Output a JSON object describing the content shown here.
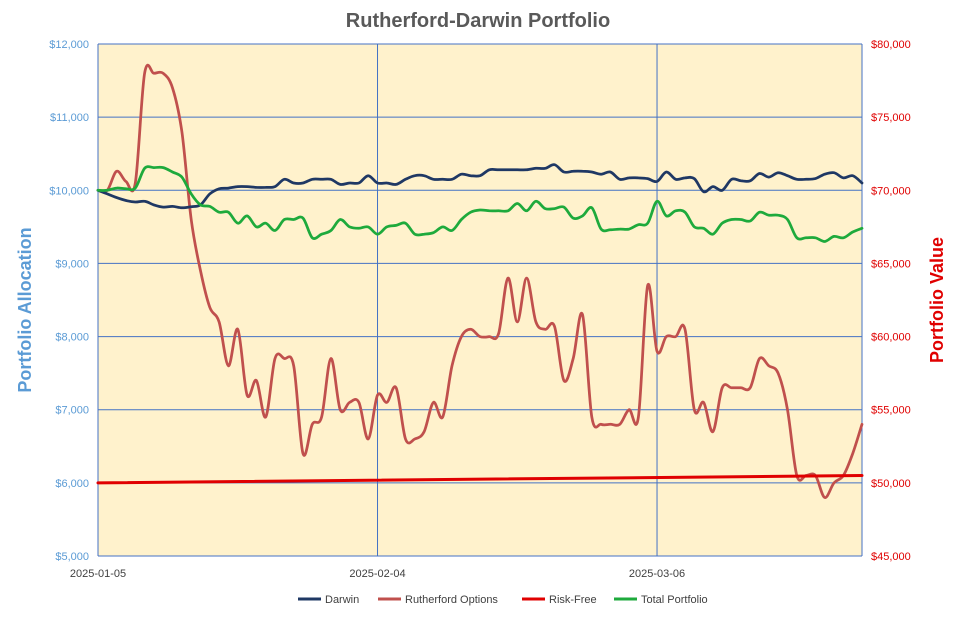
{
  "chart_data": {
    "type": "line",
    "title": "Rutherford-Darwin Portfolio",
    "y_left_label": "Portfolio Allocation",
    "y_right_label": "Portfolio Value",
    "x_tick_labels": [
      "2025-01-05",
      "2025-02-04",
      "2025-03-06"
    ],
    "x_range": [
      0,
      82
    ],
    "x_ticks": [
      0,
      30,
      60
    ],
    "y_left": {
      "min": 5000,
      "max": 12000,
      "ticks": [
        5000,
        6000,
        7000,
        8000,
        9000,
        10000,
        11000,
        12000
      ],
      "tick_labels": [
        "$5,000",
        "$6,000",
        "$7,000",
        "$8,000",
        "$9,000",
        "$10,000",
        "$11,000",
        "$12,000"
      ]
    },
    "y_right": {
      "min": 45000,
      "max": 80000,
      "tick_labels": [
        "$45,000",
        "$50,000",
        "$55,000",
        "$60,000",
        "$65,000",
        "$70,000",
        "$75,000",
        "$80,000"
      ]
    },
    "grid": true,
    "legend_position": "bottom",
    "plot_background": "#FFF2CC",
    "series": [
      {
        "name": "Darwin",
        "axis": "left",
        "color": "#1F3864",
        "points": [
          [
            0,
            10000
          ],
          [
            1,
            9950
          ],
          [
            2,
            9900
          ],
          [
            3,
            9860
          ],
          [
            4,
            9840
          ],
          [
            5,
            9850
          ],
          [
            6,
            9800
          ],
          [
            7,
            9770
          ],
          [
            8,
            9780
          ],
          [
            9,
            9760
          ],
          [
            10,
            9775
          ],
          [
            11,
            9800
          ],
          [
            12,
            9950
          ],
          [
            13,
            10020
          ],
          [
            14,
            10030
          ],
          [
            15,
            10050
          ],
          [
            16,
            10050
          ],
          [
            17,
            10040
          ],
          [
            18,
            10040
          ],
          [
            19,
            10050
          ],
          [
            20,
            10150
          ],
          [
            21,
            10100
          ],
          [
            22,
            10100
          ],
          [
            23,
            10150
          ],
          [
            24,
            10150
          ],
          [
            25,
            10150
          ],
          [
            26,
            10080
          ],
          [
            27,
            10100
          ],
          [
            28,
            10100
          ],
          [
            29,
            10200
          ],
          [
            30,
            10100
          ],
          [
            31,
            10100
          ],
          [
            32,
            10080
          ],
          [
            33,
            10150
          ],
          [
            34,
            10200
          ],
          [
            35,
            10200
          ],
          [
            36,
            10150
          ],
          [
            37,
            10150
          ],
          [
            38,
            10150
          ],
          [
            39,
            10220
          ],
          [
            40,
            10200
          ],
          [
            41,
            10200
          ],
          [
            42,
            10280
          ],
          [
            43,
            10280
          ],
          [
            44,
            10280
          ],
          [
            45,
            10280
          ],
          [
            46,
            10280
          ],
          [
            47,
            10300
          ],
          [
            48,
            10300
          ],
          [
            49,
            10350
          ],
          [
            50,
            10250
          ],
          [
            51,
            10260
          ],
          [
            52,
            10260
          ],
          [
            53,
            10250
          ],
          [
            54,
            10220
          ],
          [
            55,
            10250
          ],
          [
            56,
            10150
          ],
          [
            57,
            10170
          ],
          [
            58,
            10170
          ],
          [
            59,
            10160
          ],
          [
            60,
            10120
          ],
          [
            61,
            10250
          ],
          [
            62,
            10150
          ],
          [
            63,
            10170
          ],
          [
            64,
            10160
          ],
          [
            65,
            9980
          ],
          [
            66,
            10050
          ],
          [
            67,
            10000
          ],
          [
            68,
            10150
          ],
          [
            69,
            10130
          ],
          [
            70,
            10130
          ],
          [
            71,
            10230
          ],
          [
            72,
            10180
          ],
          [
            73,
            10240
          ],
          [
            74,
            10200
          ],
          [
            75,
            10150
          ],
          [
            76,
            10150
          ],
          [
            77,
            10160
          ],
          [
            78,
            10220
          ],
          [
            79,
            10240
          ],
          [
            80,
            10170
          ],
          [
            81,
            10200
          ],
          [
            82,
            10100
          ]
        ]
      },
      {
        "name": "Rutherford Options",
        "axis": "right",
        "color": "#C0504D",
        "points": [
          [
            0,
            70000
          ],
          [
            1,
            70000
          ],
          [
            2,
            71300
          ],
          [
            3,
            70600
          ],
          [
            4,
            70500
          ],
          [
            5,
            78000
          ],
          [
            6,
            78000
          ],
          [
            7,
            78000
          ],
          [
            8,
            77000
          ],
          [
            9,
            74000
          ],
          [
            10,
            68000
          ],
          [
            11,
            64500
          ],
          [
            12,
            62000
          ],
          [
            13,
            61000
          ],
          [
            14,
            58000
          ],
          [
            15,
            60500
          ],
          [
            16,
            56000
          ],
          [
            17,
            57000
          ],
          [
            18,
            54500
          ],
          [
            19,
            58500
          ],
          [
            20,
            58500
          ],
          [
            21,
            58000
          ],
          [
            22,
            52000
          ],
          [
            23,
            54000
          ],
          [
            24,
            54500
          ],
          [
            25,
            58500
          ],
          [
            26,
            55000
          ],
          [
            27,
            55500
          ],
          [
            28,
            55500
          ],
          [
            29,
            53000
          ],
          [
            30,
            56000
          ],
          [
            31,
            55500
          ],
          [
            32,
            56500
          ],
          [
            33,
            53000
          ],
          [
            34,
            53000
          ],
          [
            35,
            53500
          ],
          [
            36,
            55500
          ],
          [
            37,
            54500
          ],
          [
            38,
            58000
          ],
          [
            39,
            60000
          ],
          [
            40,
            60500
          ],
          [
            41,
            60000
          ],
          [
            42,
            60000
          ],
          [
            43,
            60200
          ],
          [
            44,
            64000
          ],
          [
            45,
            61000
          ],
          [
            46,
            64000
          ],
          [
            47,
            61000
          ],
          [
            48,
            60500
          ],
          [
            49,
            60700
          ],
          [
            50,
            57000
          ],
          [
            51,
            58500
          ],
          [
            52,
            61500
          ],
          [
            53,
            54500
          ],
          [
            54,
            54000
          ],
          [
            55,
            54000
          ],
          [
            56,
            54000
          ],
          [
            57,
            55000
          ],
          [
            58,
            54500
          ],
          [
            59,
            63500
          ],
          [
            60,
            59000
          ],
          [
            61,
            60000
          ],
          [
            62,
            60000
          ],
          [
            63,
            60500
          ],
          [
            64,
            55000
          ],
          [
            65,
            55500
          ],
          [
            66,
            53500
          ],
          [
            67,
            56500
          ],
          [
            68,
            56500
          ],
          [
            69,
            56500
          ],
          [
            70,
            56500
          ],
          [
            71,
            58500
          ],
          [
            72,
            58000
          ],
          [
            73,
            57500
          ],
          [
            74,
            55000
          ],
          [
            75,
            50500
          ],
          [
            76,
            50500
          ],
          [
            77,
            50500
          ],
          [
            78,
            49000
          ],
          [
            79,
            50000
          ],
          [
            80,
            50500
          ],
          [
            81,
            52000
          ],
          [
            82,
            54000
          ]
        ]
      },
      {
        "name": "Risk-Free",
        "axis": "left",
        "color": "#E00000",
        "points": [
          [
            0,
            6000
          ],
          [
            82,
            6100
          ]
        ]
      },
      {
        "name": "Total Portfolio",
        "axis": "left",
        "color": "#1EAA3C",
        "points": [
          [
            0,
            10000
          ],
          [
            1,
            10000
          ],
          [
            2,
            10030
          ],
          [
            3,
            10020
          ],
          [
            4,
            10030
          ],
          [
            5,
            10300
          ],
          [
            6,
            10310
          ],
          [
            7,
            10310
          ],
          [
            8,
            10250
          ],
          [
            9,
            10180
          ],
          [
            10,
            9950
          ],
          [
            11,
            9800
          ],
          [
            12,
            9780
          ],
          [
            13,
            9700
          ],
          [
            14,
            9700
          ],
          [
            15,
            9550
          ],
          [
            16,
            9650
          ],
          [
            17,
            9500
          ],
          [
            18,
            9550
          ],
          [
            19,
            9450
          ],
          [
            20,
            9600
          ],
          [
            21,
            9600
          ],
          [
            22,
            9620
          ],
          [
            23,
            9350
          ],
          [
            24,
            9400
          ],
          [
            25,
            9450
          ],
          [
            26,
            9600
          ],
          [
            27,
            9500
          ],
          [
            28,
            9480
          ],
          [
            29,
            9500
          ],
          [
            30,
            9400
          ],
          [
            31,
            9500
          ],
          [
            32,
            9520
          ],
          [
            33,
            9550
          ],
          [
            34,
            9400
          ],
          [
            35,
            9400
          ],
          [
            36,
            9420
          ],
          [
            37,
            9500
          ],
          [
            38,
            9450
          ],
          [
            39,
            9600
          ],
          [
            40,
            9700
          ],
          [
            41,
            9730
          ],
          [
            42,
            9720
          ],
          [
            43,
            9720
          ],
          [
            44,
            9720
          ],
          [
            45,
            9820
          ],
          [
            46,
            9720
          ],
          [
            47,
            9850
          ],
          [
            48,
            9750
          ],
          [
            49,
            9750
          ],
          [
            50,
            9770
          ],
          [
            51,
            9620
          ],
          [
            52,
            9650
          ],
          [
            53,
            9760
          ],
          [
            54,
            9470
          ],
          [
            55,
            9460
          ],
          [
            56,
            9470
          ],
          [
            57,
            9470
          ],
          [
            58,
            9530
          ],
          [
            59,
            9550
          ],
          [
            60,
            9850
          ],
          [
            61,
            9650
          ],
          [
            62,
            9720
          ],
          [
            63,
            9700
          ],
          [
            64,
            9500
          ],
          [
            65,
            9480
          ],
          [
            66,
            9400
          ],
          [
            67,
            9550
          ],
          [
            68,
            9600
          ],
          [
            69,
            9600
          ],
          [
            70,
            9580
          ],
          [
            71,
            9700
          ],
          [
            72,
            9660
          ],
          [
            73,
            9660
          ],
          [
            74,
            9600
          ],
          [
            75,
            9350
          ],
          [
            76,
            9350
          ],
          [
            77,
            9350
          ],
          [
            78,
            9300
          ],
          [
            79,
            9370
          ],
          [
            80,
            9350
          ],
          [
            81,
            9430
          ],
          [
            82,
            9480
          ]
        ]
      }
    ]
  }
}
